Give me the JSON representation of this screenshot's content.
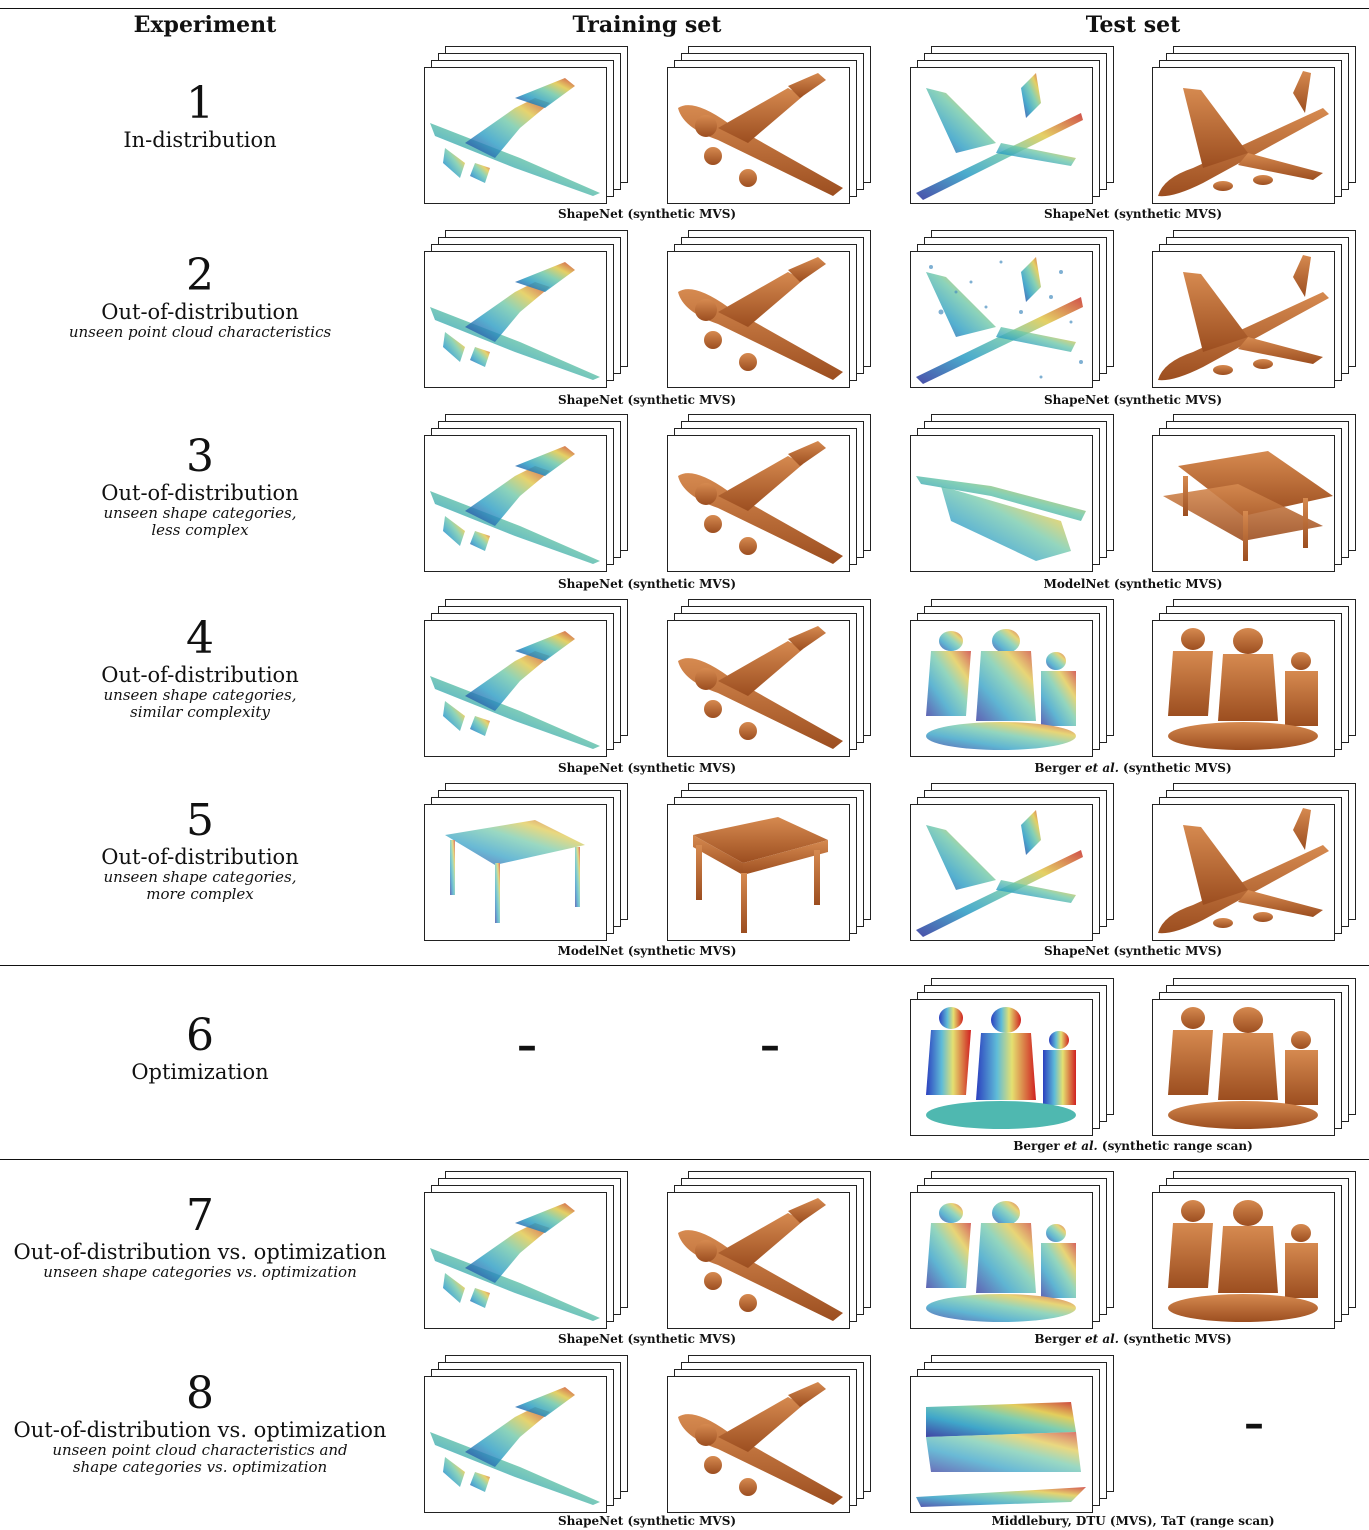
{
  "headers": {
    "experiment": "Experiment",
    "training": "Training set",
    "test": "Test set"
  },
  "rows": [
    {
      "num": "1",
      "title": "In-distribution",
      "sub1": "",
      "sub2": "",
      "train_caption": "ShapeNet (synthetic MVS)",
      "test_caption": "ShapeNet (synthetic MVS)"
    },
    {
      "num": "2",
      "title": "Out-of-distribution",
      "sub1": "unseen point cloud characteristics",
      "sub2": "",
      "train_caption": "ShapeNet (synthetic MVS)",
      "test_caption": "ShapeNet (synthetic MVS)"
    },
    {
      "num": "3",
      "title": "Out-of-distribution",
      "sub1": "unseen shape categories,",
      "sub2": "less complex",
      "train_caption": "ShapeNet (synthetic MVS)",
      "test_caption": "ModelNet (synthetic MVS)"
    },
    {
      "num": "4",
      "title": "Out-of-distribution",
      "sub1": "unseen shape categories,",
      "sub2": "similar complexity",
      "train_caption": "ShapeNet (synthetic MVS)",
      "test_caption_a": "Berger ",
      "test_caption_b": "et al.",
      "test_caption_c": " (synthetic MVS)"
    },
    {
      "num": "5",
      "title": "Out-of-distribution",
      "sub1": "unseen shape categories,",
      "sub2": "more complex",
      "train_caption": "ModelNet (synthetic MVS)",
      "test_caption": "ShapeNet (synthetic MVS)"
    },
    {
      "num": "6",
      "title": "Optimization",
      "sub1": "",
      "sub2": "",
      "train_dash": "–",
      "train_dash2": "–",
      "test_caption_a": "Berger ",
      "test_caption_b": "et al.",
      "test_caption_c": " (synthetic range scan)"
    },
    {
      "num": "7",
      "title": "Out-of-distribution vs. optimization",
      "sub1": "unseen shape categories vs. optimization",
      "sub2": "",
      "train_caption": "ShapeNet (synthetic MVS)",
      "test_caption_a": "Berger ",
      "test_caption_b": "et al.",
      "test_caption_c": " (synthetic MVS)"
    },
    {
      "num": "8",
      "title": "Out-of-distribution vs. optimization",
      "sub1": "unseen point cloud characteristics and",
      "sub2": "shape categories vs. optimization",
      "train_caption": "ShapeNet (synthetic MVS)",
      "test_caption": "Middlebury, DTU (MVS), TaT (range scan)",
      "test_dash": "–"
    }
  ]
}
